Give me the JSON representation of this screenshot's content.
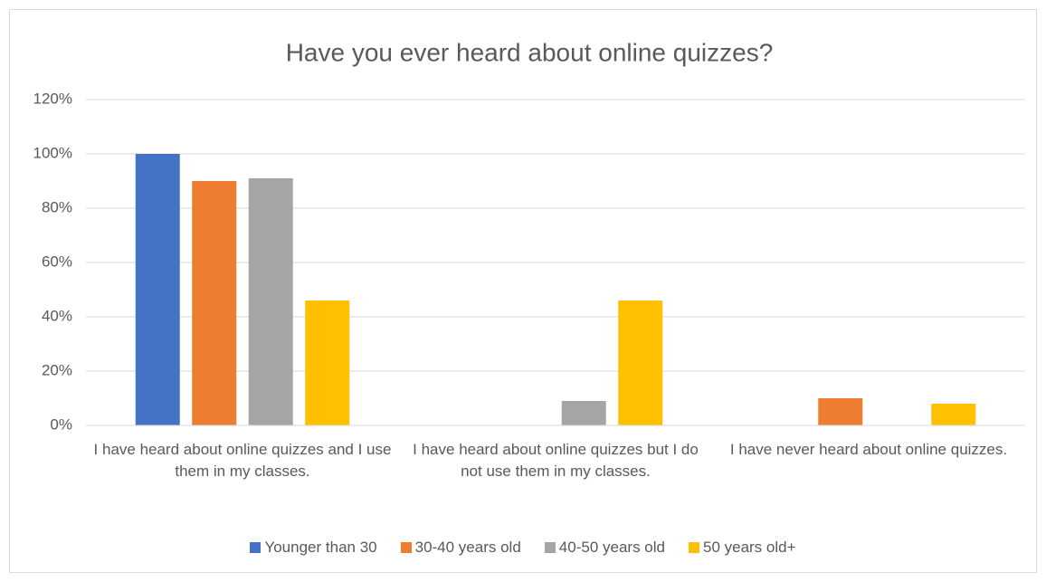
{
  "chart_data": {
    "type": "bar",
    "title": "Have you ever heard  about online quizzes?",
    "categories": [
      "I have heard about online quizzes and I use them in my classes.",
      "I have heard about online quizzes but I do not use them in my classes.",
      "I have never heard about online quizzes."
    ],
    "series": [
      {
        "name": "Younger than 30",
        "color": "#4472c4",
        "values": [
          100,
          0,
          0
        ]
      },
      {
        "name": "30-40 years old",
        "color": "#ed7d31",
        "values": [
          90,
          0,
          10
        ]
      },
      {
        "name": "40-50 years old",
        "color": "#a5a5a5",
        "values": [
          91,
          9,
          0
        ]
      },
      {
        "name": "50 years old+",
        "color": "#ffc000",
        "values": [
          46,
          46,
          8
        ]
      }
    ],
    "ylim": [
      0,
      120
    ],
    "yticks": [
      {
        "value": 0,
        "label": "0%"
      },
      {
        "value": 20,
        "label": "20%"
      },
      {
        "value": 40,
        "label": "40%"
      },
      {
        "value": 60,
        "label": "60%"
      },
      {
        "value": 80,
        "label": "80%"
      },
      {
        "value": 100,
        "label": "100%"
      },
      {
        "value": 120,
        "label": "120%"
      }
    ],
    "grid": true,
    "legend": "bottom"
  }
}
